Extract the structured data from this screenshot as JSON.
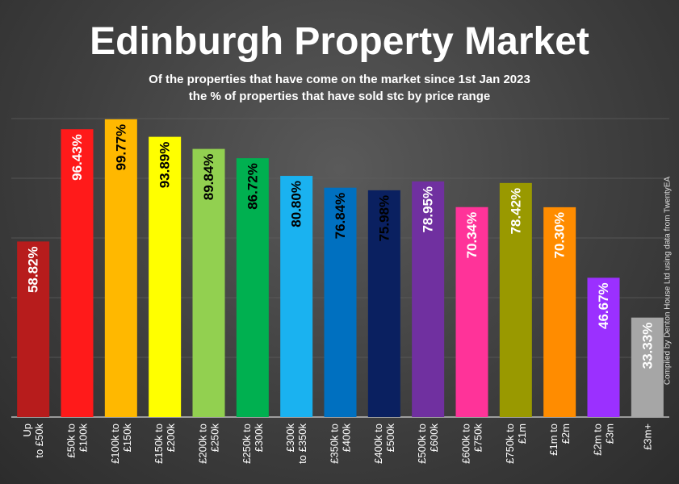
{
  "chart_data": {
    "type": "bar",
    "title": "Edinburgh Property Market",
    "subtitle": [
      "Of the properties that have come on the market since 1st Jan 2023",
      "the % of properties that have sold stc by price range"
    ],
    "ylim": [
      0,
      100
    ],
    "grid": true,
    "categories": [
      [
        "Up",
        "to £50k"
      ],
      [
        "£50k to",
        "£100k"
      ],
      [
        "£100k to",
        "£150k"
      ],
      [
        "£150k to",
        "£200k"
      ],
      [
        "£200k to",
        "£250k"
      ],
      [
        "£250k to",
        "£300k"
      ],
      [
        "£300k",
        "to £350k"
      ],
      [
        "£350k to",
        "£400k"
      ],
      [
        "£400k to",
        "£500k"
      ],
      [
        "£500k to",
        "£600k"
      ],
      [
        "£600k to",
        "£750k"
      ],
      [
        "£750k to",
        "£1m"
      ],
      [
        "£1m to",
        "£2m"
      ],
      [
        "£2m to",
        "£3m"
      ],
      [
        "£3m+"
      ]
    ],
    "values": [
      58.82,
      96.43,
      99.77,
      93.89,
      89.84,
      86.72,
      80.8,
      76.84,
      75.98,
      78.95,
      70.34,
      78.42,
      70.3,
      46.67,
      33.33
    ],
    "data_labels": [
      "58.82%",
      "96.43%",
      "99.77%",
      "93.89%",
      "89.84%",
      "86.72%",
      "80.80%",
      "76.84%",
      "75.98%",
      "78.95%",
      "70.34%",
      "78.42%",
      "70.30%",
      "46.67%",
      "33.33%"
    ],
    "colors": [
      "#b71c1c",
      "#ff1a1a",
      "#ffb800",
      "#ffff00",
      "#92d050",
      "#00b050",
      "#1ab2f0",
      "#0070c0",
      "#0a2060",
      "#7030a0",
      "#ff3399",
      "#999900",
      "#ff8c00",
      "#9b30ff",
      "#a6a6a6"
    ],
    "label_colors": [
      "#ffffff",
      "#ffffff",
      "#000000",
      "#000000",
      "#000000",
      "#000000",
      "#000000",
      "#000000",
      "#000000",
      "#ffffff",
      "#ffffff",
      "#ffffff",
      "#ffffff",
      "#ffffff",
      "#ffffff"
    ],
    "credit": "Compiled by Denton House Ltd using data from TwentyEA"
  }
}
